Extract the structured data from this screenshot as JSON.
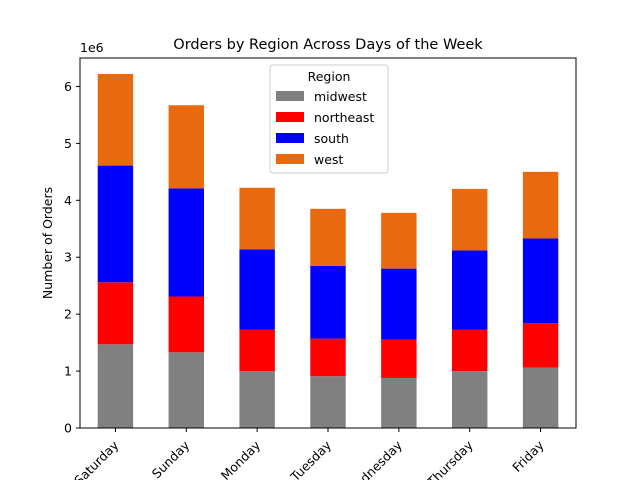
{
  "chart_data": {
    "type": "bar",
    "stacked": true,
    "title": "Orders by Region Across Days of the Week",
    "xlabel": "",
    "ylabel": "Number of Orders",
    "y_multiplier_label": "1e6",
    "ylim": [
      0,
      6.5
    ],
    "yticks": [
      0,
      1,
      2,
      3,
      4,
      5,
      6
    ],
    "categories": [
      "Saturday",
      "Sunday",
      "Monday",
      "Tuesday",
      "Wednesday",
      "Thursday",
      "Friday"
    ],
    "series": [
      {
        "name": "midwest",
        "color": "#808080",
        "values": [
          1.47,
          1.33,
          1.0,
          0.91,
          0.88,
          1.0,
          1.06
        ]
      },
      {
        "name": "northeast",
        "color": "#ff0000",
        "values": [
          1.09,
          0.98,
          0.73,
          0.66,
          0.67,
          0.73,
          0.78
        ]
      },
      {
        "name": "south",
        "color": "#0000ff",
        "values": [
          2.05,
          1.9,
          1.41,
          1.28,
          1.25,
          1.39,
          1.49
        ]
      },
      {
        "name": "west",
        "color": "#e9690f",
        "values": [
          1.61,
          1.46,
          1.08,
          1.0,
          0.98,
          1.08,
          1.17
        ]
      }
    ],
    "legend": {
      "title": "Region",
      "position": "top-center"
    },
    "grid": false
  }
}
